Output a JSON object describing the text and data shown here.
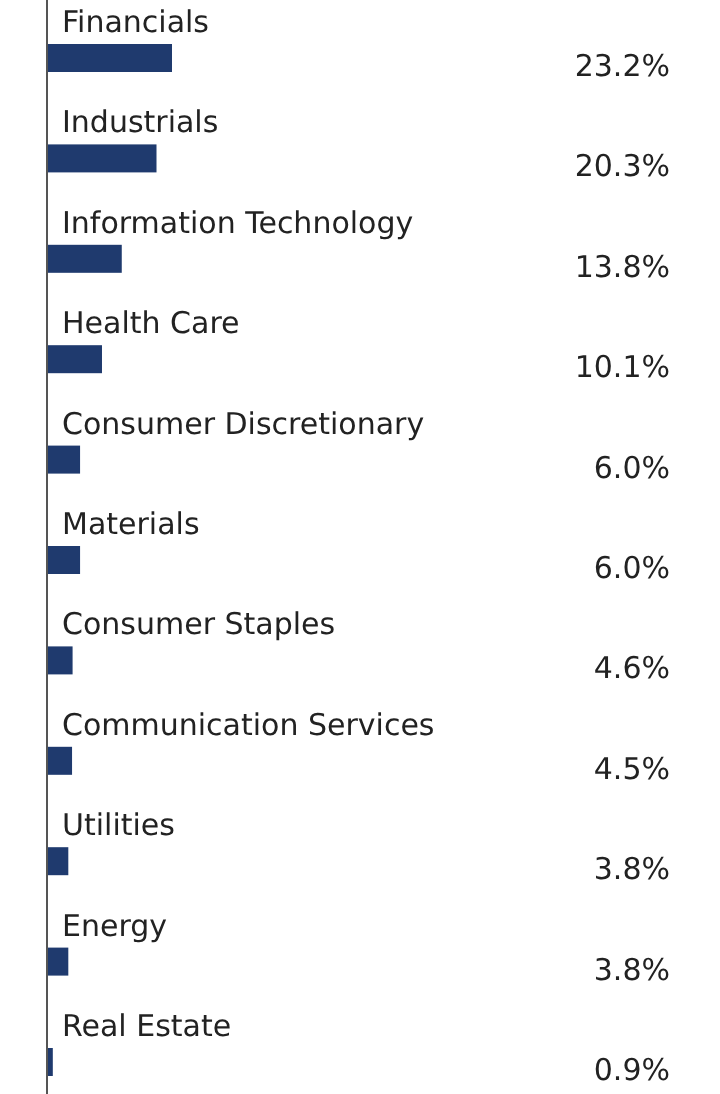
{
  "chart_data": {
    "type": "bar",
    "orientation": "horizontal",
    "color": "#1f3a6e",
    "categories": [
      "Financials",
      "Industrials",
      "Information Technology",
      "Health Care",
      "Consumer Discretionary",
      "Materials",
      "Consumer Staples",
      "Communication Services",
      "Utilities",
      "Energy",
      "Real Estate"
    ],
    "values": [
      23.2,
      20.3,
      13.8,
      10.1,
      6.0,
      6.0,
      4.6,
      4.5,
      3.8,
      3.8,
      0.9
    ],
    "value_labels": [
      "23.2%",
      "20.3%",
      "13.8%",
      "10.1%",
      "6.0%",
      "6.0%",
      "4.6%",
      "4.5%",
      "3.8%",
      "3.8%",
      "0.9%"
    ]
  }
}
